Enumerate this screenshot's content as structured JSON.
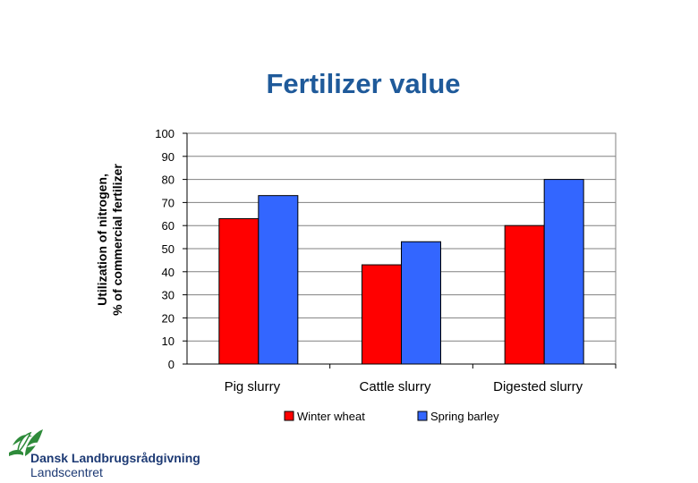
{
  "chart_data": {
    "type": "bar",
    "title": "Fertilizer value",
    "ylabel_line1": "Utilization of nitrogen,",
    "ylabel_line2": "% of commercial fertilizer",
    "xlabel": "",
    "categories": [
      "Pig slurry",
      "Cattle slurry",
      "Digested slurry"
    ],
    "series": [
      {
        "name": "Winter wheat",
        "values": [
          63,
          43,
          60
        ],
        "color": "#ff0000"
      },
      {
        "name": "Spring barley",
        "values": [
          73,
          53,
          80
        ],
        "color": "#3366ff"
      }
    ],
    "ylim": [
      0,
      100
    ],
    "yticks": [
      0,
      10,
      20,
      30,
      40,
      50,
      60,
      70,
      80,
      90,
      100
    ],
    "grid": true,
    "legend_position": "bottom"
  },
  "logo": {
    "name": "Dansk Landbrugsrådgivning",
    "subname": "Landscentret",
    "color": "#1d3a74",
    "accent_color": "#2e8b3a"
  }
}
